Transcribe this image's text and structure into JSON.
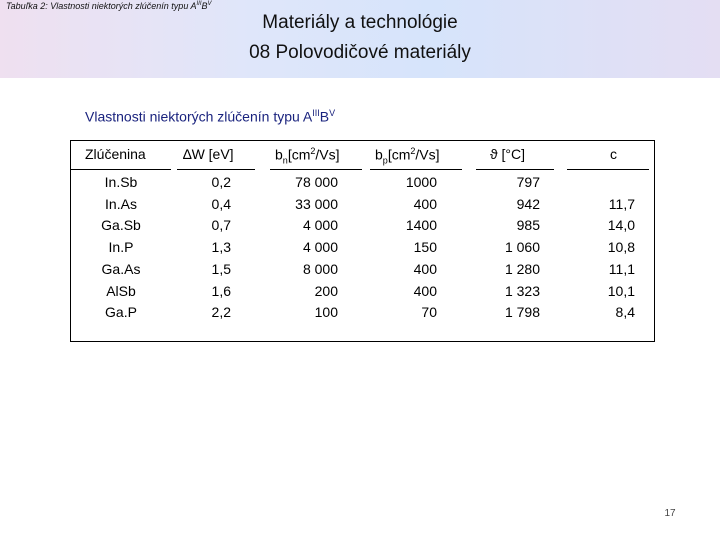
{
  "header": {
    "caption_prefix": "Tabuľka 2:",
    "caption_text": "Vlastnosti niektorých zlúčenín typu A",
    "caption_sup1": "III",
    "caption_mid": "B",
    "caption_sup2": "V",
    "title_line1": "Materiály a technológie",
    "title_line2": "08 Polovodičové materiály"
  },
  "subtitle": {
    "text": "Vlastnosti niektorých zlúčenín typu A",
    "sup1": "III",
    "mid": "B",
    "sup2": "V"
  },
  "table": {
    "headers": {
      "compound": "Zlúčenina",
      "dw_symbol": "∆W",
      "dw_unit": " [eV]",
      "bn_base": "b",
      "bn_sub": "n",
      "bn_unit_a": "[cm",
      "bn_sup": "2",
      "bn_unit_b": "/Vs]",
      "bp_base": "b",
      "bp_sub": "p",
      "bp_unit_a": "[cm",
      "bp_sup": "2",
      "bp_unit_b": "/Vs]",
      "theta_symbol": "ϑ",
      "theta_unit": " [°C]",
      "c": "c"
    },
    "columns": {
      "compound": [
        "In.Sb",
        "In.As",
        "Ga.Sb",
        "In.P",
        "Ga.As",
        "AlSb",
        "Ga.P"
      ],
      "dw": [
        "0,2",
        "0,4",
        "0,7",
        "1,3",
        "1,5",
        "1,6",
        "2,2"
      ],
      "bn": [
        "78 000",
        "33 000",
        "4 000",
        "4 000",
        "8 000",
        "200",
        "100"
      ],
      "bp": [
        "1000",
        "400",
        "1400",
        "150",
        "400",
        "400",
        "70"
      ],
      "theta": [
        "797",
        "942",
        "985",
        "1 060",
        "1 280",
        "1 323",
        "1 798"
      ],
      "c": [
        "",
        "11,7",
        "14,0",
        "10,8",
        "11,1",
        "10,1",
        "8,4"
      ]
    }
  },
  "footer": {
    "page_number": "17"
  }
}
